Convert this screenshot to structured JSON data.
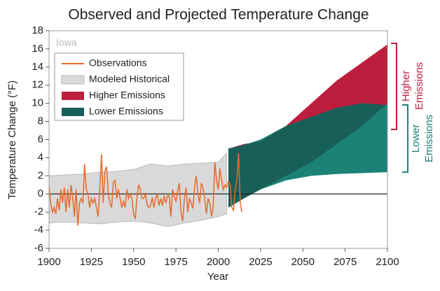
{
  "chart_data": {
    "type": "band-line",
    "title": "Observed and Projected Temperature Change",
    "annotation": "Iowa",
    "x_label": "Year",
    "y_label": "Temperature Change (°F)",
    "xlim": [
      1900,
      2100
    ],
    "xticks": [
      1900,
      1925,
      1950,
      1975,
      2000,
      2025,
      2050,
      2075,
      2100
    ],
    "ylim": [
      -6,
      18
    ],
    "yticks": [
      -6,
      -4,
      -2,
      0,
      2,
      4,
      6,
      8,
      10,
      12,
      14,
      16,
      18
    ],
    "bands": [
      {
        "name": "Modeled Historical",
        "color": "#d9d9d9",
        "x": [
          1900,
          1910,
          1920,
          1930,
          1940,
          1950,
          1960,
          1970,
          1980,
          1990,
          2000,
          2005
        ],
        "lower": [
          -3.2,
          -3.1,
          -3.2,
          -3.3,
          -3.1,
          -3.0,
          -3.2,
          -3.6,
          -3.2,
          -2.9,
          -2.5,
          -2.2
        ],
        "upper": [
          2.0,
          2.1,
          2.2,
          2.4,
          2.5,
          2.7,
          3.3,
          3.1,
          3.3,
          3.4,
          3.5,
          4.5
        ]
      },
      {
        "name": "Higher Emissions",
        "color": "#be1e3d",
        "x": [
          2006,
          2015,
          2025,
          2040,
          2055,
          2070,
          2085,
          2100
        ],
        "lower": [
          -1.5,
          -0.5,
          0.5,
          2.0,
          3.5,
          5.5,
          7.5,
          10.0
        ],
        "upper": [
          5.0,
          5.5,
          5.8,
          7.5,
          10.0,
          12.5,
          14.5,
          16.5
        ]
      },
      {
        "name": "Lower Emissions",
        "color": "#1c8276",
        "x": [
          2006,
          2015,
          2025,
          2040,
          2055,
          2070,
          2085,
          2100
        ],
        "lower": [
          -1.5,
          -0.5,
          0.5,
          1.5,
          2.0,
          2.2,
          2.3,
          2.4
        ],
        "upper": [
          5.0,
          5.4,
          6.0,
          7.5,
          8.5,
          9.5,
          10.0,
          9.8
        ]
      }
    ],
    "series": [
      {
        "name": "Observations",
        "color": "#e8692a",
        "x": [
          1900,
          1901,
          1902,
          1903,
          1904,
          1905,
          1906,
          1907,
          1908,
          1909,
          1910,
          1911,
          1912,
          1913,
          1914,
          1915,
          1916,
          1917,
          1918,
          1919,
          1920,
          1921,
          1922,
          1923,
          1924,
          1925,
          1926,
          1927,
          1928,
          1929,
          1930,
          1931,
          1932,
          1933,
          1934,
          1935,
          1936,
          1937,
          1938,
          1939,
          1940,
          1941,
          1942,
          1943,
          1944,
          1945,
          1946,
          1947,
          1948,
          1949,
          1950,
          1951,
          1952,
          1953,
          1954,
          1955,
          1956,
          1957,
          1958,
          1959,
          1960,
          1961,
          1962,
          1963,
          1964,
          1965,
          1966,
          1967,
          1968,
          1969,
          1970,
          1971,
          1972,
          1973,
          1974,
          1975,
          1976,
          1977,
          1978,
          1979,
          1980,
          1981,
          1982,
          1983,
          1984,
          1985,
          1986,
          1987,
          1988,
          1989,
          1990,
          1991,
          1992,
          1993,
          1994,
          1995,
          1996,
          1997,
          1998,
          1999,
          2000,
          2001,
          2002,
          2003,
          2004,
          2005,
          2006,
          2007,
          2008,
          2009,
          2010,
          2011,
          2012,
          2013,
          2014
        ],
        "values": [
          0.8,
          -1,
          -2,
          -1.5,
          -2.2,
          -0.5,
          -1.8,
          0.5,
          -1,
          0.7,
          -2,
          0.5,
          -1.5,
          1,
          -0.5,
          -2.5,
          0.5,
          -3.5,
          -1,
          -0.5,
          -1,
          3.3,
          0.5,
          0,
          -1.5,
          -0.5,
          -1,
          -0.5,
          -1.5,
          -2.5,
          0.5,
          4.4,
          -1,
          2.5,
          3,
          0,
          -1,
          -1.5,
          1.3,
          1.5,
          -0.5,
          0.5,
          -0.5,
          -1.5,
          -0.8,
          -1.5,
          0.5,
          -0.5,
          0,
          -0.5,
          -2.3,
          -2.7,
          -0.3,
          1,
          0.5,
          -0.5,
          -0.5,
          0,
          -1.2,
          -1.5,
          -1.3,
          -0.4,
          -1.5,
          -0.5,
          0,
          -1.3,
          -0.5,
          -1.3,
          -0.2,
          -1,
          -0.2,
          -0.2,
          -2.5,
          0.5,
          -0.3,
          -0.8,
          0.3,
          1.2,
          -2.1,
          -3,
          -0.5,
          0.7,
          -2,
          -0.5,
          -1,
          -1.6,
          0.7,
          2,
          0,
          -1,
          1.2,
          0.7,
          -0.5,
          -2.2,
          -0.5,
          -1,
          -2.5,
          -1.5,
          3.5,
          1.5,
          0.5,
          2.8,
          1.5,
          0.5,
          1,
          0.7,
          1.4,
          1,
          -1.5,
          -1.8,
          0.5,
          1.5,
          4.5,
          -1,
          -2
        ]
      }
    ]
  }
}
